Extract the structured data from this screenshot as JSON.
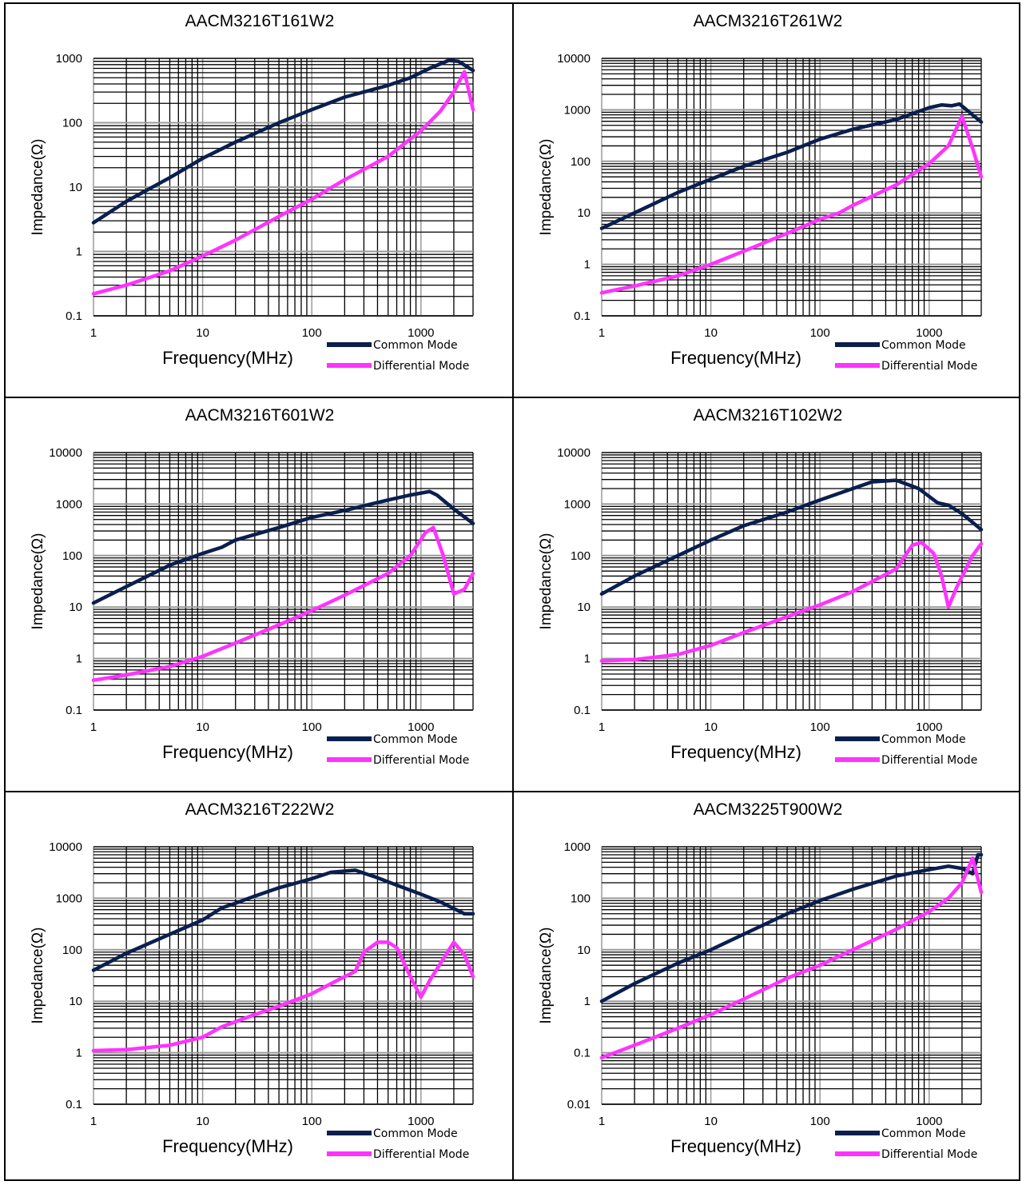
{
  "colors": {
    "common_mode": "#0a1f4e",
    "differential_mode": "#ff33ff"
  },
  "chart_data": [
    {
      "type": "line",
      "title": "AACM3216T161W2",
      "xlabel": "Frequency(MHz)",
      "ylabel": "Impedance(Ω)",
      "x_scale": "log",
      "y_scale": "log",
      "xlim": [
        1,
        3000
      ],
      "ylim": [
        0.1,
        1000
      ],
      "x_ticks": [
        "1",
        "10",
        "100",
        "1000"
      ],
      "y_ticks": [
        "0.1",
        "1",
        "10",
        "100",
        "1000"
      ],
      "legend_position": "bottom-right",
      "series": [
        {
          "name": "Common Mode",
          "color": "#0a1f4e",
          "points": [
            [
              1,
              2.8
            ],
            [
              2,
              6
            ],
            [
              5,
              14
            ],
            [
              10,
              28
            ],
            [
              20,
              50
            ],
            [
              50,
              100
            ],
            [
              100,
              160
            ],
            [
              200,
              250
            ],
            [
              500,
              380
            ],
            [
              800,
              500
            ],
            [
              1200,
              700
            ],
            [
              1800,
              930
            ],
            [
              2200,
              900
            ],
            [
              3000,
              650
            ]
          ]
        },
        {
          "name": "Differential Mode",
          "color": "#ff33ff",
          "points": [
            [
              1,
              0.22
            ],
            [
              2,
              0.3
            ],
            [
              5,
              0.5
            ],
            [
              10,
              0.85
            ],
            [
              20,
              1.5
            ],
            [
              50,
              3.5
            ],
            [
              100,
              6.5
            ],
            [
              200,
              13
            ],
            [
              500,
              30
            ],
            [
              1000,
              75
            ],
            [
              1500,
              150
            ],
            [
              2000,
              300
            ],
            [
              2500,
              620
            ],
            [
              3000,
              160
            ]
          ]
        }
      ]
    },
    {
      "type": "line",
      "title": "AACM3216T261W2",
      "xlabel": "Frequency(MHz)",
      "ylabel": "Impedance(Ω)",
      "x_scale": "log",
      "y_scale": "log",
      "xlim": [
        1,
        3000
      ],
      "ylim": [
        0.1,
        10000
      ],
      "x_ticks": [
        "1",
        "10",
        "100",
        "1000"
      ],
      "y_ticks": [
        "0.1",
        "1",
        "10",
        "100",
        "1000",
        "10000"
      ],
      "legend_position": "bottom-right",
      "series": [
        {
          "name": "Common Mode",
          "color": "#0a1f4e",
          "points": [
            [
              1,
              5
            ],
            [
              2,
              10
            ],
            [
              5,
              25
            ],
            [
              10,
              45
            ],
            [
              20,
              80
            ],
            [
              50,
              150
            ],
            [
              100,
              270
            ],
            [
              200,
              420
            ],
            [
              500,
              650
            ],
            [
              1000,
              1100
            ],
            [
              1300,
              1250
            ],
            [
              1600,
              1200
            ],
            [
              1900,
              1300
            ],
            [
              2200,
              1000
            ],
            [
              3000,
              580
            ]
          ]
        },
        {
          "name": "Differential Mode",
          "color": "#ff33ff",
          "points": [
            [
              1,
              0.28
            ],
            [
              2,
              0.38
            ],
            [
              5,
              0.6
            ],
            [
              10,
              1
            ],
            [
              20,
              1.8
            ],
            [
              50,
              4
            ],
            [
              100,
              7.5
            ],
            [
              150,
              10
            ],
            [
              200,
              14
            ],
            [
              500,
              35
            ],
            [
              1000,
              90
            ],
            [
              1500,
              200
            ],
            [
              2000,
              750
            ],
            [
              2500,
              180
            ],
            [
              3000,
              50
            ]
          ]
        }
      ]
    },
    {
      "type": "line",
      "title": "AACM3216T601W2",
      "xlabel": "Frequency(MHz)",
      "ylabel": "Impedance(Ω)",
      "x_scale": "log",
      "y_scale": "log",
      "xlim": [
        1,
        3000
      ],
      "ylim": [
        0.1,
        10000
      ],
      "x_ticks": [
        "1",
        "10",
        "100",
        "1000"
      ],
      "y_ticks": [
        "0.1",
        "1",
        "10",
        "100",
        "1000",
        "10000"
      ],
      "legend_position": "bottom-right",
      "series": [
        {
          "name": "Common Mode",
          "color": "#0a1f4e",
          "points": [
            [
              1,
              12
            ],
            [
              2,
              25
            ],
            [
              5,
              65
            ],
            [
              10,
              110
            ],
            [
              15,
              145
            ],
            [
              20,
              200
            ],
            [
              50,
              350
            ],
            [
              100,
              550
            ],
            [
              200,
              750
            ],
            [
              500,
              1200
            ],
            [
              800,
              1500
            ],
            [
              1200,
              1750
            ],
            [
              1400,
              1500
            ],
            [
              2000,
              800
            ],
            [
              3000,
              420
            ]
          ]
        },
        {
          "name": "Differential Mode",
          "color": "#ff33ff",
          "points": [
            [
              1,
              0.38
            ],
            [
              2,
              0.48
            ],
            [
              5,
              0.7
            ],
            [
              10,
              1.1
            ],
            [
              20,
              2
            ],
            [
              50,
              4.5
            ],
            [
              100,
              8.5
            ],
            [
              200,
              17
            ],
            [
              500,
              45
            ],
            [
              800,
              100
            ],
            [
              1100,
              280
            ],
            [
              1300,
              350
            ],
            [
              1600,
              100
            ],
            [
              2000,
              18
            ],
            [
              2500,
              22
            ],
            [
              3000,
              45
            ]
          ]
        }
      ]
    },
    {
      "type": "line",
      "title": "AACM3216T102W2",
      "xlabel": "Frequency(MHz)",
      "ylabel": "Impedance(Ω)",
      "x_scale": "log",
      "y_scale": "log",
      "xlim": [
        1,
        3000
      ],
      "ylim": [
        0.1,
        10000
      ],
      "x_ticks": [
        "1",
        "10",
        "100",
        "1000"
      ],
      "y_ticks": [
        "0.1",
        "1",
        "10",
        "100",
        "1000",
        "10000"
      ],
      "legend_position": "bottom-right",
      "series": [
        {
          "name": "Common Mode",
          "color": "#0a1f4e",
          "points": [
            [
              1,
              18
            ],
            [
              2,
              40
            ],
            [
              5,
              100
            ],
            [
              10,
              200
            ],
            [
              20,
              380
            ],
            [
              50,
              700
            ],
            [
              100,
              1200
            ],
            [
              200,
              2000
            ],
            [
              300,
              2700
            ],
            [
              500,
              2900
            ],
            [
              800,
              2000
            ],
            [
              1200,
              1050
            ],
            [
              1500,
              950
            ],
            [
              2000,
              650
            ],
            [
              3000,
              320
            ]
          ]
        },
        {
          "name": "Differential Mode",
          "color": "#ff33ff",
          "points": [
            [
              1,
              0.9
            ],
            [
              2,
              0.95
            ],
            [
              5,
              1.2
            ],
            [
              10,
              1.8
            ],
            [
              20,
              3.2
            ],
            [
              50,
              6.5
            ],
            [
              100,
              11
            ],
            [
              200,
              20
            ],
            [
              500,
              55
            ],
            [
              700,
              160
            ],
            [
              850,
              180
            ],
            [
              1100,
              110
            ],
            [
              1300,
              40
            ],
            [
              1500,
              10
            ],
            [
              1800,
              25
            ],
            [
              2500,
              100
            ],
            [
              3000,
              170
            ]
          ]
        }
      ]
    },
    {
      "type": "line",
      "title": "AACM3216T222W2",
      "xlabel": "Frequency(MHz)",
      "ylabel": "Impedance(Ω)",
      "x_scale": "log",
      "y_scale": "log",
      "xlim": [
        1,
        3000
      ],
      "ylim": [
        0.1,
        10000
      ],
      "x_ticks": [
        "1",
        "10",
        "100",
        "1000"
      ],
      "y_ticks": [
        "0.1",
        "1",
        "10",
        "100",
        "1000",
        "10000"
      ],
      "legend_position": "bottom-right",
      "series": [
        {
          "name": "Common Mode",
          "color": "#0a1f4e",
          "points": [
            [
              1,
              40
            ],
            [
              2,
              85
            ],
            [
              5,
              200
            ],
            [
              10,
              380
            ],
            [
              15,
              650
            ],
            [
              20,
              800
            ],
            [
              30,
              1100
            ],
            [
              50,
              1600
            ],
            [
              100,
              2400
            ],
            [
              150,
              3200
            ],
            [
              250,
              3500
            ],
            [
              400,
              2500
            ],
            [
              600,
              1800
            ],
            [
              1000,
              1200
            ],
            [
              1500,
              850
            ],
            [
              2500,
              500
            ],
            [
              3000,
              500
            ]
          ]
        },
        {
          "name": "Differential Mode",
          "color": "#ff33ff",
          "points": [
            [
              1,
              1.1
            ],
            [
              2,
              1.15
            ],
            [
              5,
              1.4
            ],
            [
              10,
              2
            ],
            [
              15,
              3.2
            ],
            [
              20,
              4
            ],
            [
              30,
              5.5
            ],
            [
              50,
              8
            ],
            [
              100,
              14
            ],
            [
              150,
              22
            ],
            [
              200,
              30
            ],
            [
              250,
              38
            ],
            [
              300,
              90
            ],
            [
              400,
              140
            ],
            [
              500,
              140
            ],
            [
              600,
              110
            ],
            [
              800,
              30
            ],
            [
              1000,
              12
            ],
            [
              1200,
              25
            ],
            [
              2000,
              140
            ],
            [
              2500,
              80
            ],
            [
              3000,
              30
            ]
          ]
        }
      ]
    },
    {
      "type": "line",
      "title": "AACM3225T900W2",
      "xlabel": "Frequency(MHz)",
      "ylabel": "Impedance(Ω)",
      "x_scale": "log",
      "y_scale": "log",
      "xlim": [
        1,
        3000
      ],
      "ylim": [
        0.01,
        1000
      ],
      "x_ticks": [
        "1",
        "10",
        "100",
        "1000"
      ],
      "y_ticks": [
        "0.01",
        "0.1",
        "1",
        "10",
        "100",
        "1000"
      ],
      "legend_position": "bottom-right",
      "series": [
        {
          "name": "Common Mode",
          "color": "#0a1f4e",
          "points": [
            [
              1,
              1
            ],
            [
              2,
              2.2
            ],
            [
              5,
              5.5
            ],
            [
              10,
              10
            ],
            [
              20,
              20
            ],
            [
              50,
              50
            ],
            [
              100,
              90
            ],
            [
              200,
              150
            ],
            [
              500,
              270
            ],
            [
              1000,
              360
            ],
            [
              1500,
              420
            ],
            [
              2000,
              380
            ],
            [
              2500,
              300
            ],
            [
              2800,
              700
            ],
            [
              3000,
              700
            ]
          ]
        },
        {
          "name": "Differential Mode",
          "color": "#ff33ff",
          "points": [
            [
              1,
              0.08
            ],
            [
              2,
              0.14
            ],
            [
              5,
              0.3
            ],
            [
              10,
              0.55
            ],
            [
              20,
              1.1
            ],
            [
              50,
              2.8
            ],
            [
              100,
              5
            ],
            [
              200,
              10
            ],
            [
              500,
              25
            ],
            [
              1000,
              55
            ],
            [
              1500,
              100
            ],
            [
              2000,
              200
            ],
            [
              2500,
              600
            ],
            [
              3000,
              130
            ]
          ]
        }
      ]
    }
  ]
}
